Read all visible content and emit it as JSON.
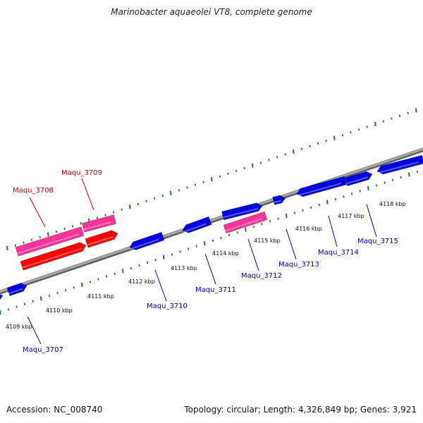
{
  "title": "Marinobacter aquaeolei VT8, complete genome",
  "footer": {
    "accession": "Accession: NC_008740",
    "summary": "Topology: circular; Length: 4,326,849 bp; Genes: 3,921"
  },
  "colors": {
    "backbone": "#8c8c8c",
    "tick": "#1f7a1f",
    "gene_forward": "#0000e0",
    "gene_reverse": "#ff0000",
    "gene_highlight": "#ff3399",
    "label_blue": "#0000aa",
    "label_red": "#cc0000"
  },
  "scale_labels": [
    "4109 kbp",
    "4110 kbp",
    "4111 kbp",
    "4112 kbp",
    "4113 kbp",
    "4114 kbp",
    "4115 kbp",
    "4116 kbp",
    "4117 kbp",
    "4118 kbp"
  ],
  "gene_labels": {
    "maqu_3707": "Maqu_3707",
    "maqu_3708": "Maqu_3708",
    "maqu_3709": "Maqu_3709",
    "maqu_3710": "Maqu_3710",
    "maqu_3711": "Maqu_3711",
    "maqu_3712": "Maqu_3712",
    "maqu_3713": "Maqu_3713",
    "maqu_3714": "Maqu_3714",
    "maqu_3715": "Maqu_3715"
  }
}
